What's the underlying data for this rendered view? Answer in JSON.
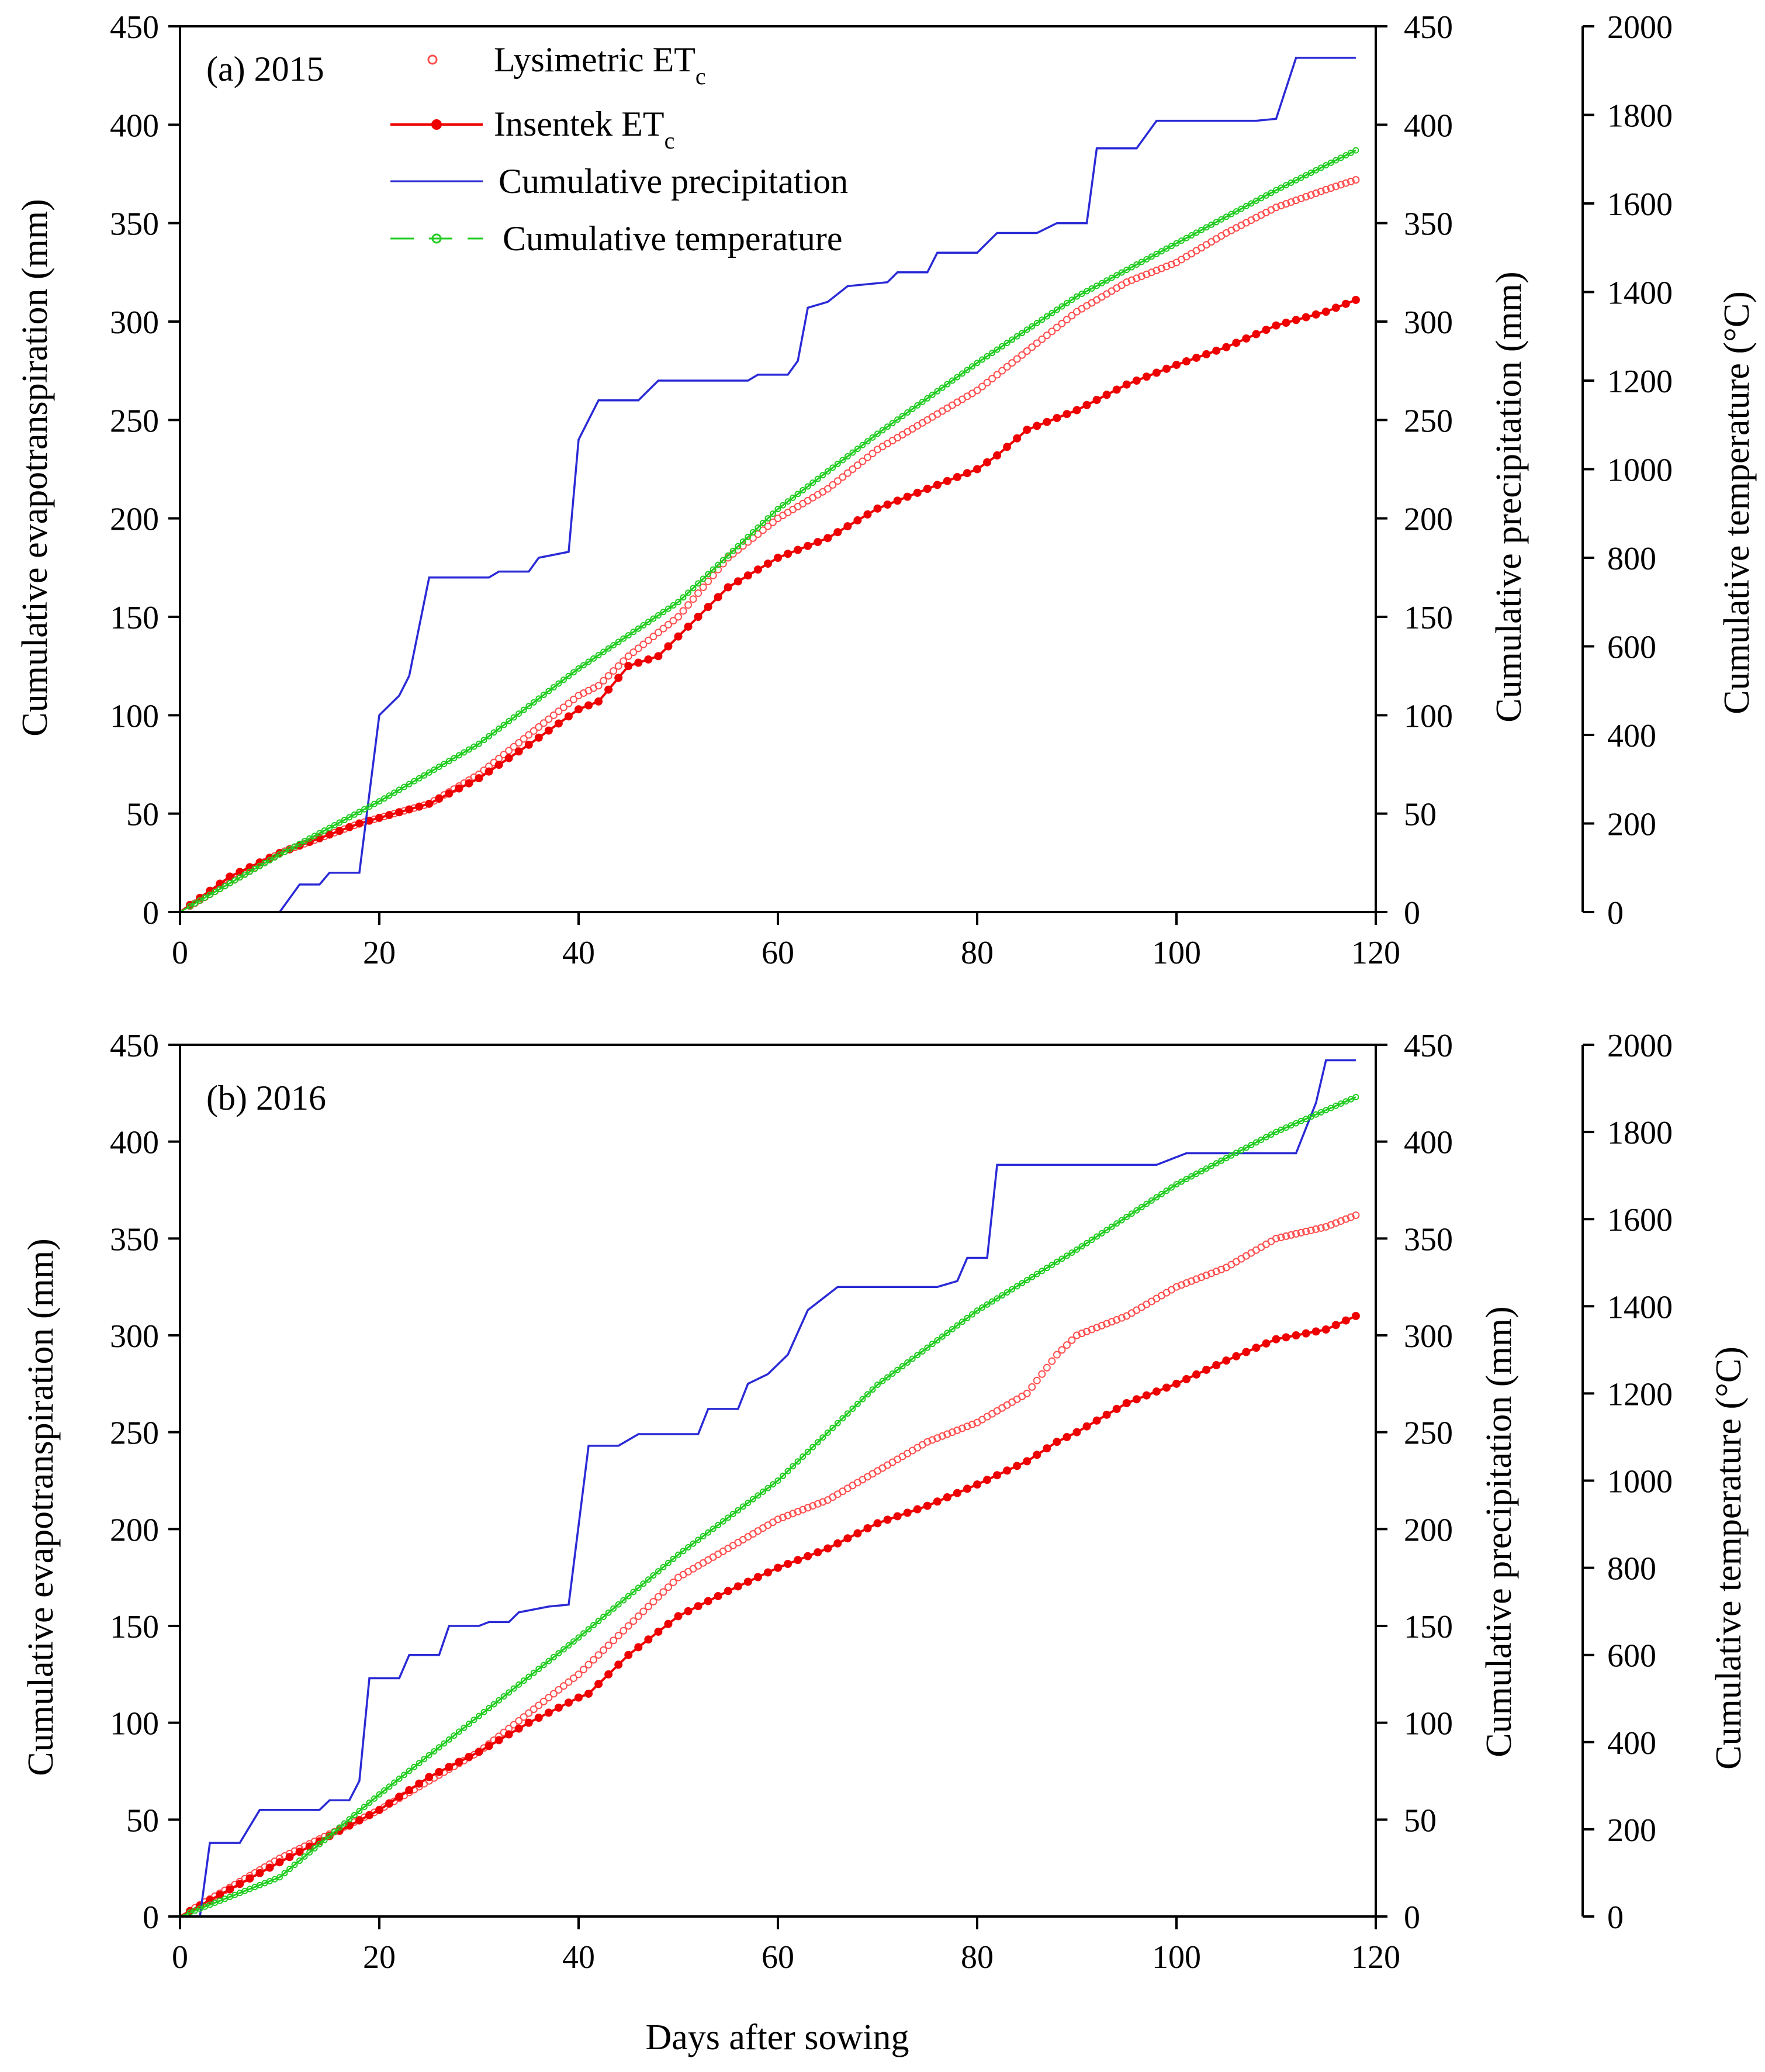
{
  "colors": {
    "lysimetric": "#ff4d4d",
    "insentek": "#ee0000",
    "precipitation": "#2a2ad6",
    "temperature": "#22cc22",
    "axis": "#000000"
  },
  "chart_data": [
    {
      "type": "line",
      "panel_label": "(a) 2015",
      "xlabel": "",
      "x_ticks": [
        "0",
        "20",
        "40",
        "60",
        "80",
        "100",
        "120"
      ],
      "xlim": [
        0,
        120
      ],
      "ylabel_left": "Cumulative evapotranspiration (mm)",
      "ylim_left": [
        0,
        450
      ],
      "y_ticks_left": [
        "0",
        "50",
        "100",
        "150",
        "200",
        "250",
        "300",
        "350",
        "400",
        "450"
      ],
      "ylabel_right": "Cumulative precipitation (mm)",
      "ylim_right": [
        0,
        450
      ],
      "y_ticks_right": [
        "0",
        "50",
        "100",
        "150",
        "200",
        "250",
        "300",
        "350",
        "400",
        "450"
      ],
      "ylabel_temp": "Cumulative temperature (°C)",
      "ylim_temp": [
        0,
        2000
      ],
      "y_ticks_temp": [
        "0",
        "200",
        "400",
        "600",
        "800",
        "1000",
        "1200",
        "1400",
        "1600",
        "1800",
        "2000"
      ],
      "legend": {
        "position": "top-left",
        "entries": [
          {
            "key": "lysimetric",
            "base": "Lysimetric ET",
            "sub": "c"
          },
          {
            "key": "insentek",
            "base": "Insentek ET",
            "sub": "c"
          },
          {
            "key": "precipitation",
            "base": "Cumulative precipitation",
            "sub": ""
          },
          {
            "key": "temperature",
            "base": "Cumulative temperature",
            "sub": ""
          }
        ]
      },
      "series": [
        {
          "key": "lysimetric",
          "name": "Lysimetric ETc",
          "axis": "left",
          "points": [
            [
              0,
              0
            ],
            [
              10,
              30
            ],
            [
              18,
              45
            ],
            [
              25,
              55
            ],
            [
              30,
              70
            ],
            [
              35,
              90
            ],
            [
              40,
              110
            ],
            [
              42,
              115
            ],
            [
              45,
              130
            ],
            [
              50,
              150
            ],
            [
              55,
              180
            ],
            [
              60,
              200
            ],
            [
              65,
              215
            ],
            [
              70,
              235
            ],
            [
              75,
              250
            ],
            [
              80,
              265
            ],
            [
              85,
              285
            ],
            [
              90,
              305
            ],
            [
              95,
              320
            ],
            [
              100,
              330
            ],
            [
              105,
              345
            ],
            [
              110,
              358
            ],
            [
              115,
              367
            ],
            [
              118,
              372
            ]
          ]
        },
        {
          "key": "insentek",
          "name": "Insentek ETc",
          "axis": "left",
          "points": [
            [
              0,
              0
            ],
            [
              5,
              18
            ],
            [
              10,
              30
            ],
            [
              18,
              45
            ],
            [
              25,
              55
            ],
            [
              30,
              68
            ],
            [
              35,
              85
            ],
            [
              40,
              103
            ],
            [
              42,
              107
            ],
            [
              45,
              125
            ],
            [
              48,
              130
            ],
            [
              50,
              140
            ],
            [
              55,
              165
            ],
            [
              60,
              180
            ],
            [
              65,
              190
            ],
            [
              70,
              205
            ],
            [
              75,
              215
            ],
            [
              80,
              225
            ],
            [
              82,
              232
            ],
            [
              85,
              245
            ],
            [
              90,
              255
            ],
            [
              95,
              268
            ],
            [
              100,
              278
            ],
            [
              105,
              287
            ],
            [
              110,
              298
            ],
            [
              115,
              305
            ],
            [
              118,
              311
            ]
          ]
        },
        {
          "key": "precipitation",
          "name": "Cumulative precipitation",
          "axis": "right",
          "step": true,
          "points": [
            [
              0,
              0
            ],
            [
              10,
              0
            ],
            [
              12,
              14
            ],
            [
              14,
              14
            ],
            [
              15,
              20
            ],
            [
              18,
              20
            ],
            [
              20,
              100
            ],
            [
              22,
              110
            ],
            [
              23,
              120
            ],
            [
              25,
              170
            ],
            [
              31,
              170
            ],
            [
              32,
              173
            ],
            [
              35,
              173
            ],
            [
              36,
              180
            ],
            [
              39,
              183
            ],
            [
              40,
              240
            ],
            [
              42,
              260
            ],
            [
              46,
              260
            ],
            [
              48,
              270
            ],
            [
              57,
              270
            ],
            [
              58,
              273
            ],
            [
              61,
              273
            ],
            [
              62,
              280
            ],
            [
              63,
              307
            ],
            [
              65,
              310
            ],
            [
              67,
              318
            ],
            [
              71,
              320
            ],
            [
              72,
              325
            ],
            [
              75,
              325
            ],
            [
              76,
              335
            ],
            [
              80,
              335
            ],
            [
              82,
              345
            ],
            [
              86,
              345
            ],
            [
              88,
              350
            ],
            [
              91,
              350
            ],
            [
              92,
              388
            ],
            [
              96,
              388
            ],
            [
              98,
              402
            ],
            [
              108,
              402
            ],
            [
              110,
              403
            ],
            [
              112,
              434
            ],
            [
              118,
              434
            ]
          ]
        },
        {
          "key": "temperature",
          "name": "Cumulative temperature",
          "axis": "temp",
          "points": [
            [
              0,
              0
            ],
            [
              10,
              130
            ],
            [
              20,
              250
            ],
            [
              30,
              380
            ],
            [
              40,
              550
            ],
            [
              50,
              700
            ],
            [
              60,
              910
            ],
            [
              70,
              1080
            ],
            [
              80,
              1240
            ],
            [
              90,
              1390
            ],
            [
              100,
              1510
            ],
            [
              110,
              1630
            ],
            [
              118,
              1720
            ]
          ]
        }
      ]
    },
    {
      "type": "line",
      "panel_label": "(b) 2016",
      "xlabel": "Days after sowing",
      "x_ticks": [
        "0",
        "20",
        "40",
        "60",
        "80",
        "100",
        "120"
      ],
      "xlim": [
        0,
        120
      ],
      "ylabel_left": "Cumulative evapotranspiration (mm)",
      "ylim_left": [
        0,
        450
      ],
      "y_ticks_left": [
        "0",
        "50",
        "100",
        "150",
        "200",
        "250",
        "300",
        "350",
        "400",
        "450"
      ],
      "ylabel_right": "Cumulative precipitation (mm)",
      "ylim_right": [
        0,
        450
      ],
      "y_ticks_right": [
        "0",
        "50",
        "100",
        "150",
        "200",
        "250",
        "300",
        "350",
        "400",
        "450"
      ],
      "ylabel_temp": "Cumulative temperature (°C)",
      "ylim_temp": [
        0,
        2000
      ],
      "y_ticks_temp": [
        "0",
        "200",
        "400",
        "600",
        "800",
        "1000",
        "1200",
        "1400",
        "1600",
        "1800",
        "2000"
      ],
      "series": [
        {
          "key": "lysimetric",
          "name": "Lysimetric ETc",
          "axis": "left",
          "points": [
            [
              0,
              0
            ],
            [
              10,
              30
            ],
            [
              20,
              55
            ],
            [
              30,
              85
            ],
            [
              40,
              125
            ],
            [
              45,
              150
            ],
            [
              50,
              175
            ],
            [
              55,
              190
            ],
            [
              60,
              205
            ],
            [
              65,
              215
            ],
            [
              70,
              230
            ],
            [
              75,
              245
            ],
            [
              80,
              255
            ],
            [
              85,
              270
            ],
            [
              88,
              290
            ],
            [
              90,
              300
            ],
            [
              95,
              310
            ],
            [
              100,
              325
            ],
            [
              105,
              335
            ],
            [
              110,
              350
            ],
            [
              115,
              356
            ],
            [
              118,
              362
            ]
          ]
        },
        {
          "key": "insentek",
          "name": "Insentek ETc",
          "axis": "left",
          "points": [
            [
              0,
              0
            ],
            [
              10,
              28
            ],
            [
              20,
              55
            ],
            [
              25,
              72
            ],
            [
              30,
              85
            ],
            [
              35,
              100
            ],
            [
              40,
              113
            ],
            [
              41,
              115
            ],
            [
              45,
              135
            ],
            [
              50,
              155
            ],
            [
              55,
              168
            ],
            [
              60,
              180
            ],
            [
              65,
              190
            ],
            [
              70,
              203
            ],
            [
              75,
              212
            ],
            [
              80,
              223
            ],
            [
              85,
              235
            ],
            [
              88,
              245
            ],
            [
              90,
              250
            ],
            [
              95,
              265
            ],
            [
              100,
              275
            ],
            [
              105,
              287
            ],
            [
              110,
              298
            ],
            [
              115,
              303
            ],
            [
              118,
              310
            ]
          ]
        },
        {
          "key": "precipitation",
          "name": "Cumulative precipitation",
          "axis": "right",
          "step": true,
          "points": [
            [
              0,
              0
            ],
            [
              2,
              0
            ],
            [
              3,
              38
            ],
            [
              6,
              38
            ],
            [
              8,
              55
            ],
            [
              14,
              55
            ],
            [
              15,
              60
            ],
            [
              17,
              60
            ],
            [
              18,
              70
            ],
            [
              19,
              123
            ],
            [
              22,
              123
            ],
            [
              23,
              135
            ],
            [
              26,
              135
            ],
            [
              27,
              150
            ],
            [
              30,
              150
            ],
            [
              31,
              152
            ],
            [
              33,
              152
            ],
            [
              34,
              157
            ],
            [
              37,
              160
            ],
            [
              39,
              161
            ],
            [
              41,
              243
            ],
            [
              44,
              243
            ],
            [
              46,
              249
            ],
            [
              52,
              249
            ],
            [
              53,
              262
            ],
            [
              56,
              262
            ],
            [
              57,
              275
            ],
            [
              59,
              280
            ],
            [
              61,
              290
            ],
            [
              63,
              313
            ],
            [
              66,
              325
            ],
            [
              76,
              325
            ],
            [
              78,
              328
            ],
            [
              79,
              340
            ],
            [
              81,
              340
            ],
            [
              82,
              388
            ],
            [
              98,
              388
            ],
            [
              101,
              394
            ],
            [
              112,
              394
            ],
            [
              114,
              420
            ],
            [
              115,
              442
            ],
            [
              118,
              442
            ]
          ]
        },
        {
          "key": "temperature",
          "name": "Cumulative temperature",
          "axis": "temp",
          "points": [
            [
              0,
              0
            ],
            [
              10,
              90
            ],
            [
              20,
              280
            ],
            [
              30,
              460
            ],
            [
              40,
              640
            ],
            [
              50,
              830
            ],
            [
              60,
              1000
            ],
            [
              70,
              1220
            ],
            [
              80,
              1390
            ],
            [
              90,
              1530
            ],
            [
              100,
              1680
            ],
            [
              110,
              1800
            ],
            [
              118,
              1880
            ]
          ]
        }
      ]
    }
  ]
}
